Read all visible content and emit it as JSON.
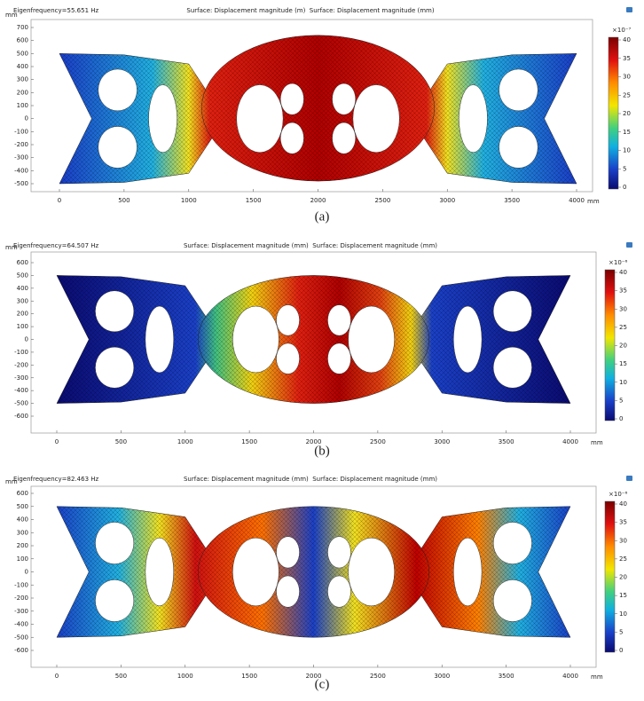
{
  "panels": [
    {
      "eigenfrequency": "Eigenfrequency=55.651 Hz",
      "surface_title": "Surface: Displacement magnitude (m)  Surface: Displacement magnitude (mm)",
      "y_unit": "mm",
      "x_unit": "mm",
      "xticks": [
        "0",
        "500",
        "1000",
        "1500",
        "2000",
        "2500",
        "3000",
        "3500",
        "4000"
      ],
      "yticks": [
        "700",
        "600",
        "500",
        "400",
        "300",
        "200",
        "100",
        "0",
        "-100",
        "-200",
        "-300",
        "-400",
        "-500"
      ],
      "colorbar_scale": "×10⁻⁷",
      "colorbar_ticks": [
        "40",
        "35",
        "30",
        "25",
        "20",
        "15",
        "10",
        "5",
        "0"
      ],
      "caption": "(a)"
    },
    {
      "eigenfrequency": "Eigenfrequency=64.507 Hz",
      "surface_title": "Surface: Displacement magnitude (mm)  Surface: Displacement magnitude (mm)",
      "y_unit": "mm",
      "x_unit": "mm",
      "xticks": [
        "0",
        "500",
        "1000",
        "1500",
        "2000",
        "2500",
        "3000",
        "3500",
        "4000"
      ],
      "yticks": [
        "600",
        "500",
        "400",
        "300",
        "200",
        "100",
        "0",
        "-100",
        "-200",
        "-300",
        "-400",
        "-500",
        "-600"
      ],
      "colorbar_scale": "×10⁻⁶",
      "colorbar_ticks": [
        "40",
        "35",
        "30",
        "25",
        "20",
        "15",
        "10",
        "5",
        "0"
      ],
      "caption": "(b)"
    },
    {
      "eigenfrequency": "Eigenfrequency=82.463 Hz",
      "surface_title": "Surface: Displacement magnitude (mm)  Surface: Displacement magnitude (mm)",
      "y_unit": "mm",
      "x_unit": "mm",
      "xticks": [
        "0",
        "500",
        "1000",
        "1500",
        "2000",
        "2500",
        "3000",
        "3500",
        "4000"
      ],
      "yticks": [
        "600",
        "500",
        "400",
        "300",
        "200",
        "100",
        "0",
        "-100",
        "-200",
        "-300",
        "-400",
        "-500",
        "-600"
      ],
      "colorbar_scale": "×10⁻⁶",
      "colorbar_ticks": [
        "40",
        "35",
        "30",
        "25",
        "20",
        "15",
        "10",
        "5",
        "0"
      ],
      "caption": "(c)"
    }
  ]
}
